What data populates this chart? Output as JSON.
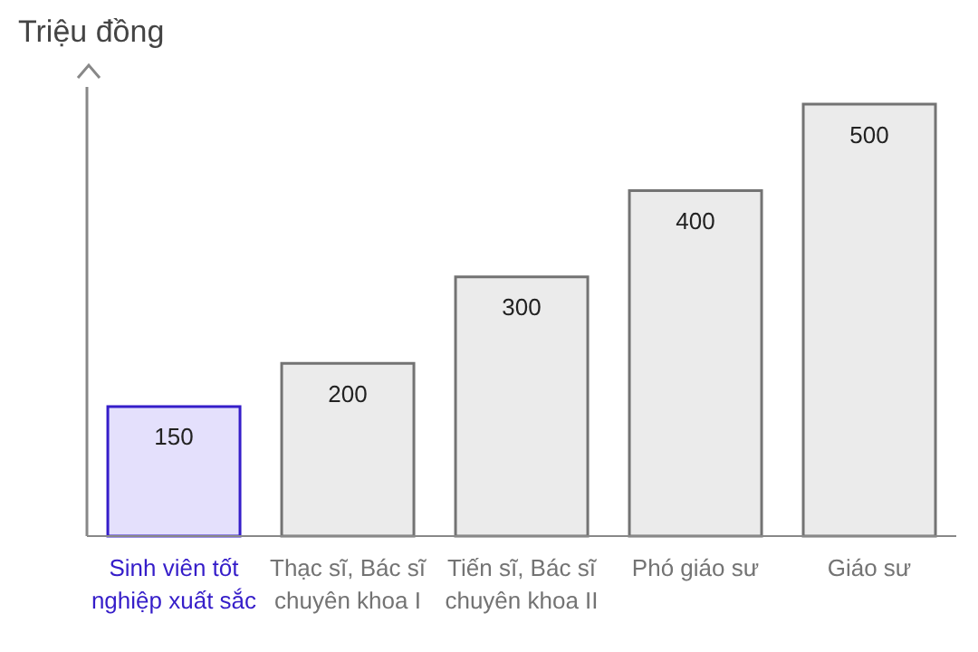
{
  "chart_data": {
    "type": "bar",
    "ylabel": "Triệu đồng",
    "categories": [
      "Sinh viên tốt nghiệp xuất sắc",
      "Thạc sĩ, Bác sĩ chuyên khoa I",
      "Tiến sĩ, Bác sĩ chuyên khoa II",
      "Phó giáo sư",
      "Giáo sư"
    ],
    "values": [
      150,
      200,
      300,
      400,
      500
    ],
    "colors": [
      "#e4e0fc",
      "#ebebeb",
      "#ebebeb",
      "#ebebeb",
      "#ebebeb"
    ],
    "data_labels": true
  }
}
